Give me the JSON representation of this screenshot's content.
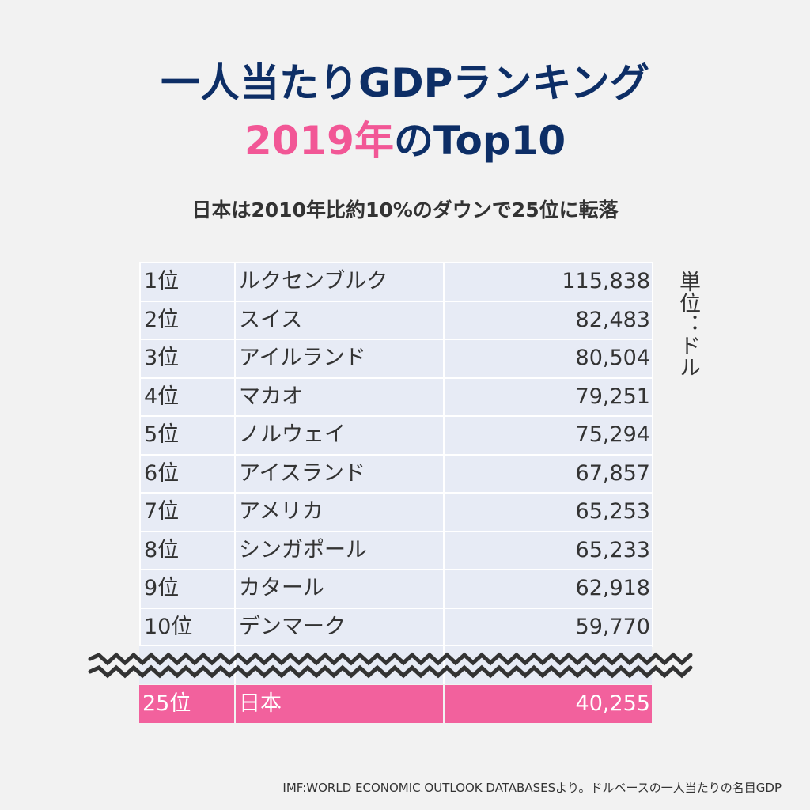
{
  "colors": {
    "background": "#f2f2f2",
    "navy": "#0d2e66",
    "pink": "#f25796",
    "row_bg": "#e7ebf5",
    "text": "#333333",
    "highlight_bg": "#f2619d"
  },
  "title": {
    "line1": "一人当たりGDPランキング",
    "year": "2019年",
    "suffix": "のTop10"
  },
  "subtitle": "日本は2010年比約10%のダウンで25位に転落",
  "unit": "単位：ドル",
  "rows": [
    {
      "rank": "1位",
      "country": "ルクセンブルク",
      "value": "115,838"
    },
    {
      "rank": "2位",
      "country": "スイス",
      "value": "82,483"
    },
    {
      "rank": "3位",
      "country": "アイルランド",
      "value": "80,504"
    },
    {
      "rank": "4位",
      "country": "マカオ",
      "value": "79,251"
    },
    {
      "rank": "5位",
      "country": "ノルウェイ",
      "value": "75,294"
    },
    {
      "rank": "6位",
      "country": "アイスランド",
      "value": "67,857"
    },
    {
      "rank": "7位",
      "country": "アメリカ",
      "value": "65,253"
    },
    {
      "rank": "8位",
      "country": "シンガポール",
      "value": "65,233"
    },
    {
      "rank": "9位",
      "country": "カタール",
      "value": "62,918"
    },
    {
      "rank": "10位",
      "country": "デンマーク",
      "value": "59,770"
    }
  ],
  "japan": {
    "rank": "25位",
    "country": "日本",
    "value": "40,255"
  },
  "source": "IMF:WORLD ECONOMIC OUTLOOK DATABASESより。ドルベースの一人当たりの名目GDP"
}
